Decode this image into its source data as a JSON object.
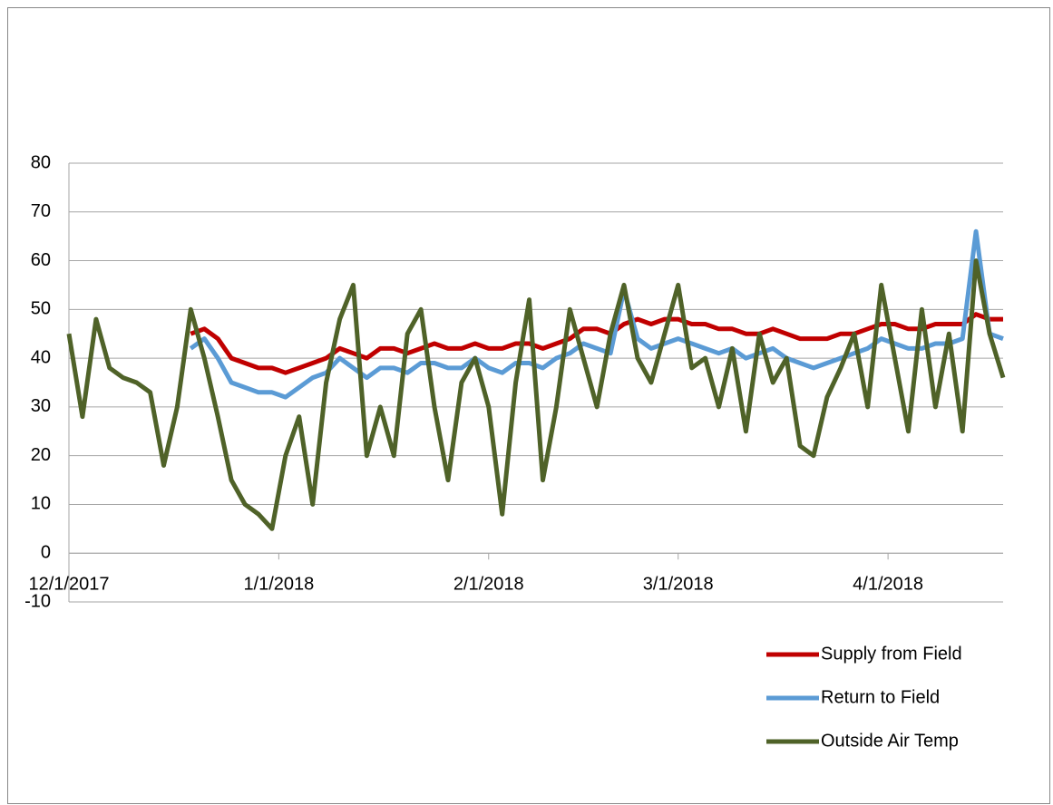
{
  "chart_data": {
    "type": "line",
    "x": [
      "12/1/2017",
      "12/3/2017",
      "12/5/2017",
      "12/7/2017",
      "12/9/2017",
      "12/11/2017",
      "12/13/2017",
      "12/15/2017",
      "12/17/2017",
      "12/19/2017",
      "12/21/2017",
      "12/23/2017",
      "12/25/2017",
      "12/27/2017",
      "12/29/2017",
      "12/31/2017",
      "1/2/2018",
      "1/4/2018",
      "1/6/2018",
      "1/8/2018",
      "1/10/2018",
      "1/12/2018",
      "1/14/2018",
      "1/16/2018",
      "1/18/2018",
      "1/20/2018",
      "1/22/2018",
      "1/24/2018",
      "1/26/2018",
      "1/28/2018",
      "1/30/2018",
      "2/1/2018",
      "2/3/2018",
      "2/5/2018",
      "2/7/2018",
      "2/9/2018",
      "2/11/2018",
      "2/13/2018",
      "2/15/2018",
      "2/17/2018",
      "2/19/2018",
      "2/21/2018",
      "2/23/2018",
      "2/25/2018",
      "2/27/2018",
      "3/1/2018",
      "3/3/2018",
      "3/5/2018",
      "3/7/2018",
      "3/9/2018",
      "3/11/2018",
      "3/13/2018",
      "3/15/2018",
      "3/17/2018",
      "3/19/2018",
      "3/21/2018",
      "3/23/2018",
      "3/25/2018",
      "3/27/2018",
      "3/29/2018",
      "3/31/2018",
      "4/2/2018",
      "4/4/2018",
      "4/6/2018",
      "4/8/2018",
      "4/10/2018",
      "4/12/2018",
      "4/14/2018",
      "4/16/2018",
      "4/18/2018"
    ],
    "series": [
      {
        "name": "Supply from Field",
        "color": "#c00000",
        "values": [
          null,
          null,
          null,
          null,
          null,
          null,
          null,
          null,
          null,
          45,
          46,
          44,
          40,
          39,
          38,
          38,
          37,
          38,
          39,
          40,
          42,
          41,
          40,
          42,
          42,
          41,
          42,
          43,
          42,
          42,
          43,
          42,
          42,
          43,
          43,
          42,
          43,
          44,
          46,
          46,
          45,
          47,
          48,
          47,
          48,
          48,
          47,
          47,
          46,
          46,
          45,
          45,
          46,
          45,
          44,
          44,
          44,
          45,
          45,
          46,
          47,
          47,
          46,
          46,
          47,
          47,
          47,
          49,
          48,
          48
        ]
      },
      {
        "name": "Return to Field",
        "color": "#5b9bd5",
        "values": [
          null,
          null,
          null,
          null,
          null,
          null,
          null,
          null,
          null,
          42,
          44,
          40,
          35,
          34,
          33,
          33,
          32,
          34,
          36,
          37,
          40,
          38,
          36,
          38,
          38,
          37,
          39,
          39,
          38,
          38,
          40,
          38,
          37,
          39,
          39,
          38,
          40,
          41,
          43,
          42,
          41,
          54,
          44,
          42,
          43,
          44,
          43,
          42,
          41,
          42,
          40,
          41,
          42,
          40,
          39,
          38,
          39,
          40,
          41,
          42,
          44,
          43,
          42,
          42,
          43,
          43,
          44,
          66,
          45,
          44
        ]
      },
      {
        "name": "Outside Air Temp",
        "color": "#4f6228",
        "values": [
          45,
          28,
          48,
          38,
          36,
          35,
          33,
          18,
          30,
          50,
          40,
          28,
          15,
          10,
          8,
          5,
          20,
          28,
          10,
          35,
          48,
          55,
          20,
          30,
          20,
          45,
          50,
          30,
          15,
          35,
          40,
          30,
          8,
          35,
          52,
          15,
          30,
          50,
          40,
          30,
          45,
          55,
          40,
          35,
          45,
          55,
          38,
          40,
          30,
          42,
          25,
          45,
          35,
          40,
          22,
          20,
          32,
          38,
          45,
          30,
          55,
          40,
          25,
          50,
          30,
          45,
          25,
          60,
          45,
          36
        ]
      }
    ],
    "xlim": [
      "12/1/2017",
      "4/18/2018"
    ],
    "xticks": [
      "12/1/2017",
      "1/1/2018",
      "2/1/2018",
      "3/1/2018",
      "4/1/2018"
    ],
    "ylim": [
      -10,
      80
    ],
    "yticks": [
      -10,
      0,
      10,
      20,
      30,
      40,
      50,
      60,
      70,
      80
    ],
    "grid": true,
    "legend": "bottom-right"
  }
}
